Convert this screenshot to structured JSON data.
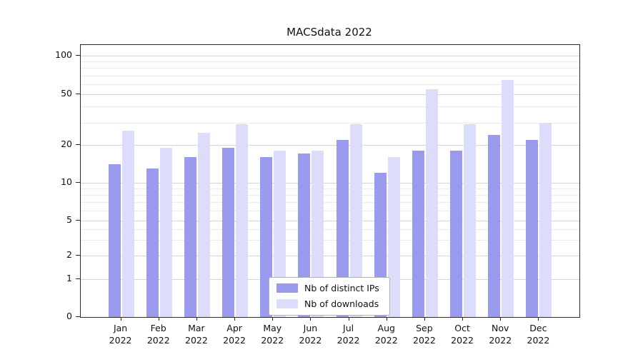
{
  "page": {
    "background": "#ffffff"
  },
  "chart_data": {
    "type": "bar",
    "title": "MACSdata 2022",
    "categories": [
      "Jan",
      "Feb",
      "Mar",
      "Apr",
      "May",
      "Jun",
      "Jul",
      "Aug",
      "Sep",
      "Oct",
      "Nov",
      "Dec"
    ],
    "year_label": "2022",
    "series": [
      {
        "name": "Nb of distinct IPs",
        "color": "#9a9aef",
        "values": [
          14,
          13,
          16,
          19,
          16,
          17,
          22,
          12,
          18,
          18,
          24,
          22
        ]
      },
      {
        "name": "Nb of downloads",
        "color": "#dcdcfb",
        "values": [
          26,
          19,
          25,
          29,
          18,
          18,
          29,
          16,
          55,
          29,
          65,
          30
        ]
      }
    ],
    "yscale": "symlog",
    "yticks": [
      0,
      1,
      2,
      5,
      10,
      20,
      50,
      100
    ],
    "ylim": [
      0,
      120
    ],
    "xlabel": "",
    "ylabel": "",
    "grid": true,
    "legend_position": "lower center"
  }
}
